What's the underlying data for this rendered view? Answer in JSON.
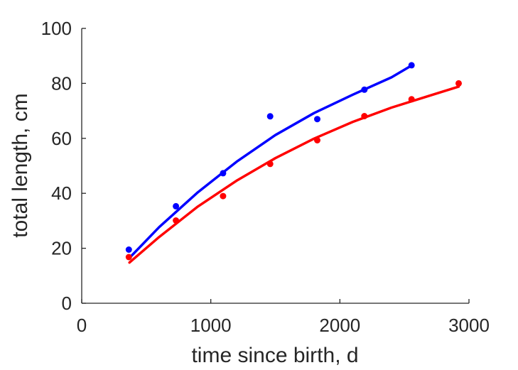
{
  "chart_data": {
    "type": "scatter",
    "title": "",
    "xlabel": "time since birth, d",
    "ylabel": "total length, cm",
    "xlim": [
      0,
      3000
    ],
    "ylim": [
      0,
      100
    ],
    "x_ticks": [
      "0",
      "1000",
      "2000",
      "3000"
    ],
    "y_ticks": [
      "0",
      "20",
      "40",
      "60",
      "80",
      "100"
    ],
    "grid": false,
    "legend": false,
    "series": [
      {
        "color": "#0000ff",
        "points": [
          [
            365,
            19.5
          ],
          [
            730,
            35.3
          ],
          [
            1095,
            47.3
          ],
          [
            1460,
            68.0
          ],
          [
            1825,
            67.0
          ],
          [
            2190,
            77.7
          ],
          [
            2555,
            86.6
          ]
        ],
        "fit": [
          [
            370,
            16.5
          ],
          [
            600,
            27.7
          ],
          [
            900,
            40.4
          ],
          [
            1200,
            51.5
          ],
          [
            1500,
            61.2
          ],
          [
            1800,
            69.2
          ],
          [
            2100,
            75.9
          ],
          [
            2400,
            82.2
          ],
          [
            2555,
            86.5
          ]
        ]
      },
      {
        "color": "#ff0000",
        "points": [
          [
            365,
            16.8
          ],
          [
            730,
            30.1
          ],
          [
            1095,
            39.0
          ],
          [
            1460,
            50.7
          ],
          [
            1825,
            59.3
          ],
          [
            2190,
            68.1
          ],
          [
            2555,
            74.2
          ],
          [
            2920,
            80.0
          ]
        ],
        "fit": [
          [
            370,
            14.8
          ],
          [
            600,
            24.1
          ],
          [
            900,
            35.2
          ],
          [
            1200,
            44.6
          ],
          [
            1500,
            52.8
          ],
          [
            1800,
            59.9
          ],
          [
            2100,
            66.0
          ],
          [
            2400,
            71.2
          ],
          [
            2700,
            75.6
          ],
          [
            2920,
            78.8
          ]
        ]
      }
    ]
  }
}
